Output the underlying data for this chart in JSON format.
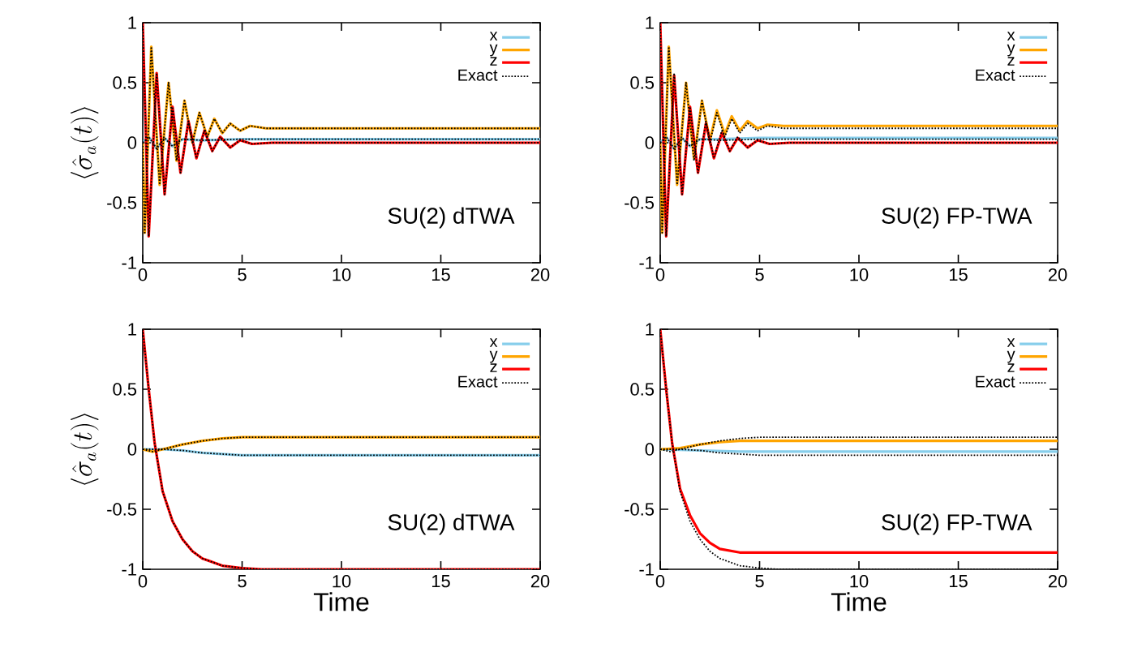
{
  "chart_data": [
    {
      "type": "line",
      "ylabel": "\\langle \\hat{\\sigma}_a(t) \\rangle",
      "xlim": [
        0,
        20
      ],
      "ylim": [
        -1,
        1
      ],
      "xticks": [
        0,
        5,
        10,
        15,
        20
      ],
      "yticks": [
        -1,
        -0.5,
        0,
        0.5,
        1
      ],
      "legend": "top right",
      "marker": "none",
      "annotations": [
        "SU(2) dTWA"
      ],
      "series": [
        {
          "name": "x",
          "color": "#87ceeb",
          "line_style": "solid",
          "x": [
            0,
            0.3,
            0.7,
            1.1,
            1.5,
            2,
            3,
            5,
            20
          ],
          "values": [
            0,
            0.05,
            -0.05,
            0.04,
            -0.03,
            0.03,
            0.02,
            0.03,
            0.03
          ]
        },
        {
          "name": "y",
          "color": "#ffa500",
          "line_style": "solid",
          "x": [
            0,
            0.1,
            0.43,
            0.85,
            1.3,
            1.7,
            2.1,
            2.5,
            2.85,
            3.25,
            3.6,
            4.0,
            4.4,
            4.9,
            5.4,
            6.2,
            10,
            20
          ],
          "values": [
            0,
            -0.75,
            0.8,
            -0.35,
            0.5,
            -0.15,
            0.35,
            0,
            0.25,
            0.05,
            0.2,
            0.08,
            0.16,
            0.1,
            0.14,
            0.12,
            0.12,
            0.12
          ]
        },
        {
          "name": "z",
          "color": "#ff0000",
          "line_style": "solid",
          "x": [
            0,
            0.3,
            0.7,
            1.1,
            1.5,
            1.9,
            2.3,
            2.7,
            3.1,
            3.5,
            3.9,
            4.4,
            4.9,
            5.5,
            6.5,
            20
          ],
          "values": [
            1,
            -0.78,
            0.58,
            -0.43,
            0.3,
            -0.25,
            0.18,
            -0.13,
            0.1,
            -0.07,
            0.05,
            -0.04,
            0.02,
            -0.01,
            0,
            0
          ]
        },
        {
          "name": "Exact",
          "color": "#000000",
          "line_style": "dotted",
          "x": [
            0,
            0.1,
            0.43,
            0.85,
            1.3,
            1.7,
            2.1,
            2.5,
            2.85,
            3.25,
            3.6,
            4.0,
            4.4,
            4.9,
            5.4,
            6.2,
            10,
            20
          ],
          "values": [
            0,
            -0.75,
            0.8,
            -0.35,
            0.5,
            -0.15,
            0.35,
            0,
            0.25,
            0.05,
            0.2,
            0.08,
            0.16,
            0.1,
            0.14,
            0.12,
            0.12,
            0.12
          ]
        },
        {
          "color": "#000000",
          "line_style": "dotted",
          "x": [
            0,
            0.3,
            0.7,
            1.1,
            1.5,
            1.9,
            2.3,
            2.7,
            3.1,
            3.5,
            3.9,
            4.4,
            4.9,
            5.5,
            6.5,
            20
          ],
          "values": [
            1,
            -0.78,
            0.58,
            -0.43,
            0.3,
            -0.25,
            0.18,
            -0.13,
            0.1,
            -0.07,
            0.05,
            -0.04,
            0.02,
            -0.01,
            0,
            0
          ]
        },
        {
          "color": "#000000",
          "line_style": "dotted",
          "x": [
            0,
            0.3,
            0.7,
            1.1,
            1.5,
            2,
            3,
            5,
            20
          ],
          "values": [
            0,
            0.05,
            -0.05,
            0.04,
            -0.03,
            0.03,
            0.02,
            0.03,
            0.03
          ]
        }
      ]
    },
    {
      "type": "line",
      "xlim": [
        0,
        20
      ],
      "ylim": [
        -1,
        1
      ],
      "xticks": [
        0,
        5,
        10,
        15,
        20
      ],
      "yticks": [
        -1,
        -0.5,
        0,
        0.5,
        1
      ],
      "legend": "top right",
      "marker": "none",
      "annotations": [
        "SU(2) FP-TWA"
      ],
      "series": [
        {
          "name": "x",
          "color": "#87ceeb",
          "line_style": "solid",
          "x": [
            0,
            0.3,
            0.7,
            1.1,
            1.5,
            2,
            3,
            5,
            20
          ],
          "values": [
            0,
            0.05,
            -0.05,
            0.04,
            -0.03,
            0.03,
            0.03,
            0.04,
            0.04
          ]
        },
        {
          "name": "y",
          "color": "#ffa500",
          "line_style": "solid",
          "x": [
            0,
            0.1,
            0.43,
            0.85,
            1.3,
            1.7,
            2.1,
            2.5,
            2.85,
            3.25,
            3.6,
            4.0,
            4.4,
            4.9,
            5.4,
            6.2,
            10,
            20
          ],
          "values": [
            0,
            -0.75,
            0.8,
            -0.35,
            0.5,
            -0.13,
            0.35,
            0.02,
            0.27,
            0.07,
            0.22,
            0.1,
            0.18,
            0.12,
            0.15,
            0.14,
            0.14,
            0.14
          ]
        },
        {
          "name": "z",
          "color": "#ff0000",
          "line_style": "solid",
          "x": [
            0,
            0.3,
            0.7,
            1.1,
            1.5,
            1.9,
            2.3,
            2.7,
            3.1,
            3.5,
            3.9,
            4.4,
            4.9,
            5.5,
            6.5,
            20
          ],
          "values": [
            1,
            -0.78,
            0.56,
            -0.43,
            0.3,
            -0.25,
            0.16,
            -0.13,
            0.08,
            -0.07,
            0.04,
            -0.04,
            0.02,
            -0.01,
            0,
            0
          ]
        },
        {
          "name": "Exact",
          "color": "#000000",
          "line_style": "dotted",
          "x": [
            0,
            0.1,
            0.43,
            0.85,
            1.3,
            1.7,
            2.1,
            2.5,
            2.85,
            3.25,
            3.6,
            4.0,
            4.4,
            4.9,
            5.4,
            6.2,
            10,
            20
          ],
          "values": [
            0,
            -0.75,
            0.8,
            -0.35,
            0.5,
            -0.15,
            0.35,
            0,
            0.25,
            0.05,
            0.2,
            0.08,
            0.16,
            0.1,
            0.14,
            0.12,
            0.12,
            0.12
          ]
        },
        {
          "color": "#000000",
          "line_style": "dotted",
          "x": [
            0,
            0.3,
            0.7,
            1.1,
            1.5,
            1.9,
            2.3,
            2.7,
            3.1,
            3.5,
            3.9,
            4.4,
            4.9,
            5.5,
            6.5,
            20
          ],
          "values": [
            1,
            -0.78,
            0.58,
            -0.43,
            0.3,
            -0.25,
            0.18,
            -0.13,
            0.1,
            -0.07,
            0.05,
            -0.04,
            0.02,
            -0.01,
            0,
            0
          ]
        },
        {
          "color": "#000000",
          "line_style": "dotted",
          "x": [
            0,
            0.3,
            0.7,
            1.1,
            1.5,
            2,
            3,
            5,
            20
          ],
          "values": [
            0,
            0.05,
            -0.05,
            0.04,
            -0.03,
            0.03,
            0.02,
            0.03,
            0.03
          ]
        }
      ]
    },
    {
      "type": "line",
      "ylabel": "\\langle \\hat{\\sigma}_a(t) \\rangle",
      "xlabel": "Time",
      "xlim": [
        0,
        20
      ],
      "ylim": [
        -1,
        1
      ],
      "xticks": [
        0,
        5,
        10,
        15,
        20
      ],
      "yticks": [
        -1,
        -0.5,
        0,
        0.5,
        1
      ],
      "legend": "top right",
      "marker": "none",
      "annotations": [
        "SU(2) dTWA"
      ],
      "series": [
        {
          "name": "x",
          "color": "#87ceeb",
          "line_style": "solid",
          "x": [
            0,
            1,
            2,
            3,
            4,
            5,
            20
          ],
          "values": [
            0,
            0,
            -0.01,
            -0.03,
            -0.04,
            -0.05,
            -0.05
          ]
        },
        {
          "name": "y",
          "color": "#ffa500",
          "line_style": "solid",
          "x": [
            0,
            0.5,
            1,
            2,
            3,
            4,
            5,
            6,
            20
          ],
          "values": [
            0,
            -0.02,
            0,
            0.04,
            0.07,
            0.09,
            0.1,
            0.1,
            0.1
          ]
        },
        {
          "name": "z",
          "color": "#ff0000",
          "line_style": "solid",
          "x": [
            0,
            0.3,
            0.6,
            1,
            1.5,
            2,
            2.5,
            3,
            4,
            5,
            6,
            20
          ],
          "values": [
            1,
            0.5,
            0.05,
            -0.35,
            -0.6,
            -0.75,
            -0.85,
            -0.91,
            -0.97,
            -0.99,
            -1,
            -1
          ]
        },
        {
          "name": "Exact",
          "color": "#000000",
          "line_style": "dotted",
          "x": [
            0,
            0.5,
            1,
            2,
            3,
            4,
            5,
            6,
            20
          ],
          "values": [
            0,
            -0.02,
            0,
            0.04,
            0.07,
            0.09,
            0.1,
            0.1,
            0.1
          ]
        },
        {
          "color": "#000000",
          "line_style": "dotted",
          "x": [
            0,
            0.3,
            0.6,
            1,
            1.5,
            2,
            2.5,
            3,
            4,
            5,
            6,
            20
          ],
          "values": [
            1,
            0.5,
            0.05,
            -0.35,
            -0.6,
            -0.75,
            -0.85,
            -0.91,
            -0.97,
            -0.99,
            -1,
            -1
          ]
        },
        {
          "color": "#000000",
          "line_style": "dotted",
          "x": [
            0,
            1,
            2,
            3,
            4,
            5,
            20
          ],
          "values": [
            0,
            0,
            -0.01,
            -0.03,
            -0.04,
            -0.05,
            -0.05
          ]
        }
      ]
    },
    {
      "type": "line",
      "xlabel": "Time",
      "xlim": [
        0,
        20
      ],
      "ylim": [
        -1,
        1
      ],
      "xticks": [
        0,
        5,
        10,
        15,
        20
      ],
      "yticks": [
        -1,
        -0.5,
        0,
        0.5,
        1
      ],
      "legend": "top right",
      "marker": "none",
      "annotations": [
        "SU(2) FP-TWA"
      ],
      "series": [
        {
          "name": "x",
          "color": "#87ceeb",
          "line_style": "solid",
          "x": [
            0,
            2,
            4,
            20
          ],
          "values": [
            0,
            -0.01,
            -0.02,
            -0.02
          ]
        },
        {
          "name": "y",
          "color": "#ffa500",
          "line_style": "solid",
          "x": [
            0,
            1,
            2,
            3,
            4,
            20
          ],
          "values": [
            0,
            0.01,
            0.04,
            0.06,
            0.07,
            0.07
          ]
        },
        {
          "name": "z",
          "color": "#ff0000",
          "line_style": "solid",
          "x": [
            0,
            0.3,
            0.6,
            1,
            1.5,
            2,
            2.5,
            3,
            4,
            20
          ],
          "values": [
            1,
            0.5,
            0.05,
            -0.33,
            -0.55,
            -0.7,
            -0.78,
            -0.83,
            -0.86,
            -0.86
          ]
        },
        {
          "name": "Exact",
          "color": "#000000",
          "line_style": "dotted",
          "x": [
            0,
            0.5,
            1,
            2,
            3,
            4,
            5,
            6,
            20
          ],
          "values": [
            0,
            -0.02,
            0,
            0.04,
            0.07,
            0.09,
            0.1,
            0.1,
            0.1
          ]
        },
        {
          "color": "#000000",
          "line_style": "dotted",
          "x": [
            0,
            0.3,
            0.6,
            1,
            1.5,
            2,
            2.5,
            3,
            4,
            5,
            6,
            20
          ],
          "values": [
            1,
            0.5,
            0.05,
            -0.35,
            -0.6,
            -0.75,
            -0.85,
            -0.91,
            -0.97,
            -0.99,
            -1,
            -1
          ]
        },
        {
          "color": "#000000",
          "line_style": "dotted",
          "x": [
            0,
            1,
            2,
            3,
            4,
            5,
            20
          ],
          "values": [
            0,
            0,
            -0.01,
            -0.03,
            -0.04,
            -0.05,
            -0.05
          ]
        }
      ]
    }
  ]
}
